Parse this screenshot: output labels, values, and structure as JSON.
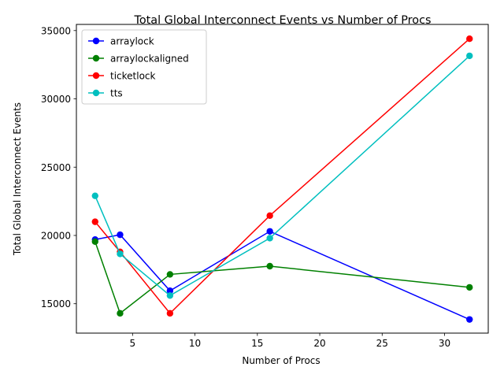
{
  "chart_data": {
    "type": "line",
    "title": "Total Global Interconnect Events vs Number of Procs",
    "xlabel": "Number of Procs",
    "ylabel": "Total Global Interconnect Events",
    "xlim": [
      0.5,
      33.5
    ],
    "ylim": [
      12850,
      35450
    ],
    "xticks": [
      5,
      10,
      15,
      20,
      25,
      30
    ],
    "yticks": [
      15000,
      20000,
      25000,
      30000,
      35000
    ],
    "grid": false,
    "legend_position": "top-left",
    "x": [
      2,
      4,
      8,
      16,
      32
    ],
    "series": [
      {
        "name": "arraylock",
        "color": "#0000ff",
        "values": [
          19700,
          20050,
          15950,
          20300,
          13850
        ]
      },
      {
        "name": "arraylockaligned",
        "color": "#008000",
        "values": [
          19550,
          14300,
          17150,
          17750,
          16200
        ]
      },
      {
        "name": "ticketlock",
        "color": "#ff0000",
        "values": [
          21000,
          18800,
          14300,
          21450,
          34400
        ]
      },
      {
        "name": "tts",
        "color": "#00bfbf",
        "values": [
          22900,
          18650,
          15600,
          19800,
          33150
        ]
      }
    ]
  }
}
